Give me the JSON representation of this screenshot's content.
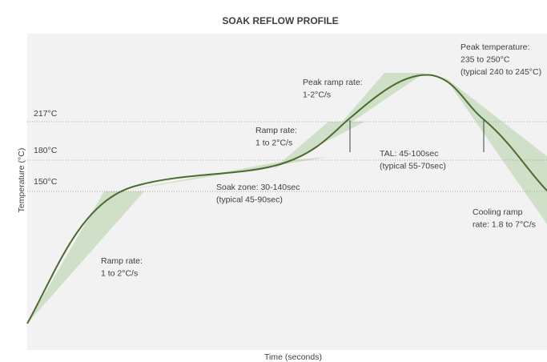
{
  "title": "SOAK REFLOW PROFILE",
  "x_axis_label": "Time (seconds)",
  "y_axis_label": "Temperature (°C)",
  "reference_lines": [
    {
      "label": "217°C"
    },
    {
      "label": "180°C"
    },
    {
      "label": "150°C"
    }
  ],
  "annotations": [
    {
      "lines": [
        "Ramp rate:",
        "1 to 2°C/s"
      ]
    },
    {
      "lines": [
        "Soak zone: 30-140sec",
        "(typical 45-90sec)"
      ]
    },
    {
      "lines": [
        "Ramp rate:",
        "1 to 2°C/s"
      ]
    },
    {
      "lines": [
        "Peak ramp rate:",
        "1-2°C/s"
      ]
    },
    {
      "lines": [
        "TAL: 45-100sec",
        "(typical 55-70sec)"
      ]
    },
    {
      "lines": [
        "Peak temperature:",
        "235 to 250°C",
        "(typical 240 to 245°C)"
      ]
    },
    {
      "lines": [
        "Cooling ramp",
        "rate: 1.8 to 7°C/s"
      ]
    }
  ]
}
